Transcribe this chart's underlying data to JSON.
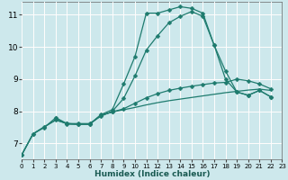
{
  "xlabel": "Humidex (Indice chaleur)",
  "xlim": [
    0,
    23
  ],
  "ylim": [
    6.5,
    11.4
  ],
  "xticks": [
    0,
    1,
    2,
    3,
    4,
    5,
    6,
    7,
    8,
    9,
    10,
    11,
    12,
    13,
    14,
    15,
    16,
    17,
    18,
    19,
    20,
    21,
    22,
    23
  ],
  "yticks": [
    7,
    8,
    9,
    10,
    11
  ],
  "bg_color": "#cde8ec",
  "line_color": "#1e7b6e",
  "white_grid_color": "#ffffff",
  "pink_grid_color": "#f0aaaa",
  "lines": [
    {
      "x": [
        0,
        1,
        2,
        3,
        4,
        5,
        6,
        7,
        8,
        9,
        10,
        11,
        12,
        13,
        14,
        15,
        16,
        17,
        18,
        19,
        20,
        21,
        22
      ],
      "y": [
        6.65,
        7.3,
        7.5,
        7.8,
        7.6,
        7.6,
        7.6,
        7.9,
        8.05,
        8.85,
        9.7,
        11.05,
        11.05,
        11.15,
        11.25,
        11.2,
        11.05,
        10.05,
        9.0,
        8.6,
        8.5,
        8.65,
        8.45
      ],
      "marker": "D",
      "marker_size": 2.5,
      "lw": 0.9
    },
    {
      "x": [
        3,
        4,
        5,
        6,
        7,
        8,
        9,
        10,
        11,
        12,
        13,
        14,
        15,
        16,
        17,
        18,
        19,
        20,
        21,
        22
      ],
      "y": [
        7.8,
        7.62,
        7.62,
        7.62,
        7.85,
        8.0,
        8.4,
        9.1,
        9.9,
        10.35,
        10.75,
        10.95,
        11.1,
        10.95,
        10.05,
        9.25,
        8.6,
        8.5,
        8.65,
        8.45
      ],
      "marker": "D",
      "marker_size": 2.5,
      "lw": 0.9
    },
    {
      "x": [
        0,
        1,
        2,
        3,
        4,
        5,
        6,
        7,
        8,
        9,
        10,
        11,
        12,
        13,
        14,
        15,
        16,
        17,
        18,
        19,
        20,
        21,
        22
      ],
      "y": [
        6.65,
        7.3,
        7.52,
        7.73,
        7.62,
        7.6,
        7.6,
        7.88,
        7.98,
        8.08,
        8.25,
        8.42,
        8.55,
        8.65,
        8.72,
        8.78,
        8.83,
        8.88,
        8.9,
        9.0,
        8.95,
        8.85,
        8.7
      ],
      "marker": "D",
      "marker_size": 2.5,
      "lw": 0.9
    },
    {
      "x": [
        0,
        1,
        2,
        3,
        4,
        5,
        6,
        7,
        8,
        9,
        10,
        11,
        12,
        13,
        14,
        15,
        16,
        17,
        18,
        19,
        20,
        21,
        22
      ],
      "y": [
        6.65,
        7.3,
        7.52,
        7.73,
        7.62,
        7.6,
        7.6,
        7.88,
        7.98,
        8.05,
        8.12,
        8.2,
        8.27,
        8.33,
        8.38,
        8.43,
        8.48,
        8.53,
        8.58,
        8.62,
        8.66,
        8.69,
        8.65
      ],
      "marker": null,
      "marker_size": 0,
      "lw": 0.9
    }
  ]
}
